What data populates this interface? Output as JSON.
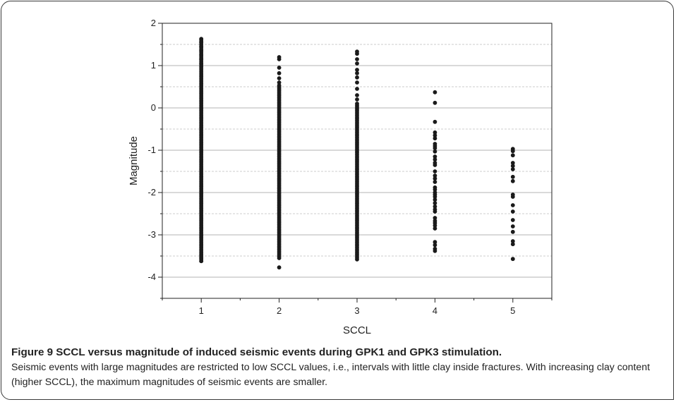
{
  "chart_data": {
    "type": "scatter",
    "xlabel": "SCCL",
    "ylabel": "Magnitude",
    "xlim": [
      0.5,
      5.5
    ],
    "ylim": [
      -4.5,
      2
    ],
    "x_ticks": [
      1,
      2,
      3,
      4,
      5
    ],
    "y_ticks": [
      -4,
      -3,
      -2,
      -1,
      0,
      1,
      2
    ],
    "grid": true,
    "series": [
      {
        "x": 1,
        "y_range": [
          -3.62,
          1.63
        ],
        "y_gap_points": [
          -3.62,
          -3.55,
          -3.5,
          1.05,
          1.15,
          1.25,
          1.35,
          1.45,
          1.55,
          1.63
        ]
      },
      {
        "x": 2,
        "y_range": [
          -3.55,
          0.55
        ],
        "y_gap_points": [
          -3.77,
          0.6,
          0.7,
          0.82,
          0.95,
          1.15,
          1.2
        ]
      },
      {
        "x": 3,
        "y_range": [
          -3.58,
          0.1
        ],
        "y_gap_points": [
          0.2,
          0.3,
          0.45,
          0.6,
          0.72,
          0.82,
          0.9,
          1.05,
          1.15,
          1.28,
          1.33
        ]
      },
      {
        "x": 4,
        "y_points": [
          0.37,
          0.12,
          -0.33,
          -0.58,
          -0.65,
          -0.72,
          -0.85,
          -0.9,
          -0.95,
          -1.03,
          -1.15,
          -1.22,
          -1.3,
          -1.35,
          -1.5,
          -1.6,
          -1.67,
          -1.75,
          -1.88,
          -1.93,
          -2.0,
          -2.05,
          -2.1,
          -2.17,
          -2.25,
          -2.33,
          -2.4,
          -2.45,
          -2.6,
          -2.67,
          -2.72,
          -2.78,
          -2.85,
          -3.17,
          -3.24,
          -3.33,
          -3.38
        ]
      },
      {
        "x": 5,
        "y_points": [
          -0.97,
          -1.02,
          -1.12,
          -1.3,
          -1.37,
          -1.45,
          -1.63,
          -1.73,
          -2.05,
          -2.1,
          -2.3,
          -2.45,
          -2.65,
          -2.8,
          -2.93,
          -3.15,
          -3.22,
          -3.57
        ]
      }
    ],
    "marker_color": "#1a1a1a"
  },
  "caption": {
    "title": "Figure 9 SCCL versus magnitude of induced seismic events during GPK1 and GPK3 stimulation.",
    "body": "Seismic events with large magnitudes are restricted to low SCCL values, i.e., intervals with little clay inside fractures. With increasing clay content (higher SCCL), the maximum magnitudes of seismic events are smaller."
  }
}
